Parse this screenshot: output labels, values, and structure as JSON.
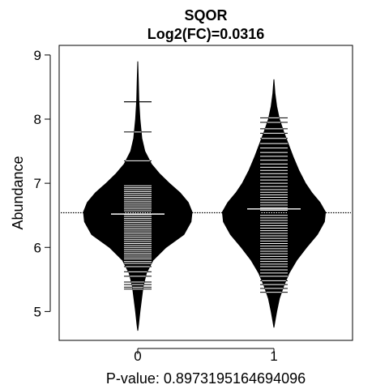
{
  "chart_data": {
    "type": "beanplot",
    "title": "SQOR",
    "subtitle": "Log2(FC)=0.0316",
    "xlabel": "P-value: 0.8973195164694096",
    "ylabel": "Abundance",
    "categories": [
      "0",
      "1"
    ],
    "ylim": [
      4.55,
      9.15
    ],
    "yticks": [
      5,
      6,
      7,
      8,
      9
    ],
    "overall_mean": 6.54,
    "grid": false,
    "series": [
      {
        "group": "0",
        "mean": 6.52,
        "density": [
          [
            4.7,
            0.0
          ],
          [
            4.8,
            0.015
          ],
          [
            5.0,
            0.04
          ],
          [
            5.2,
            0.07
          ],
          [
            5.4,
            0.1
          ],
          [
            5.6,
            0.16
          ],
          [
            5.8,
            0.28
          ],
          [
            6.0,
            0.52
          ],
          [
            6.2,
            0.85
          ],
          [
            6.4,
            0.98
          ],
          [
            6.55,
            1.0
          ],
          [
            6.7,
            0.93
          ],
          [
            6.85,
            0.78
          ],
          [
            7.0,
            0.58
          ],
          [
            7.15,
            0.4
          ],
          [
            7.3,
            0.25
          ],
          [
            7.5,
            0.13
          ],
          [
            7.7,
            0.075
          ],
          [
            8.0,
            0.04
          ],
          [
            8.3,
            0.02
          ],
          [
            8.6,
            0.01
          ],
          [
            8.9,
            0.0
          ]
        ],
        "observations": [
          5.35,
          5.38,
          5.42,
          5.46,
          5.55,
          5.62,
          5.7,
          5.75,
          5.78,
          5.82,
          5.85,
          5.88,
          5.91,
          5.94,
          5.97,
          6.0,
          6.03,
          6.06,
          6.09,
          6.12,
          6.15,
          6.18,
          6.21,
          6.24,
          6.27,
          6.3,
          6.33,
          6.36,
          6.39,
          6.42,
          6.45,
          6.48,
          6.51,
          6.54,
          6.57,
          6.6,
          6.63,
          6.66,
          6.69,
          6.72,
          6.75,
          6.78,
          6.81,
          6.84,
          6.87,
          6.9,
          6.93,
          6.96,
          7.35,
          7.8,
          8.27
        ]
      },
      {
        "group": "1",
        "mean": 6.6,
        "density": [
          [
            4.75,
            0.0
          ],
          [
            4.85,
            0.02
          ],
          [
            5.0,
            0.05
          ],
          [
            5.2,
            0.1
          ],
          [
            5.4,
            0.18
          ],
          [
            5.6,
            0.28
          ],
          [
            5.8,
            0.42
          ],
          [
            6.0,
            0.6
          ],
          [
            6.2,
            0.8
          ],
          [
            6.4,
            0.93
          ],
          [
            6.55,
            0.95
          ],
          [
            6.7,
            0.85
          ],
          [
            6.85,
            0.7
          ],
          [
            7.0,
            0.58
          ],
          [
            7.2,
            0.46
          ],
          [
            7.4,
            0.36
          ],
          [
            7.6,
            0.27
          ],
          [
            7.8,
            0.18
          ],
          [
            8.0,
            0.1
          ],
          [
            8.2,
            0.05
          ],
          [
            8.4,
            0.02
          ],
          [
            8.62,
            0.0
          ]
        ],
        "observations": [
          5.3,
          5.36,
          5.42,
          5.48,
          5.55,
          5.6,
          5.65,
          5.7,
          5.74,
          5.78,
          5.82,
          5.86,
          5.9,
          5.94,
          5.98,
          6.02,
          6.06,
          6.1,
          6.14,
          6.18,
          6.22,
          6.26,
          6.3,
          6.34,
          6.38,
          6.42,
          6.46,
          6.5,
          6.54,
          6.58,
          6.62,
          6.66,
          6.7,
          6.74,
          6.78,
          6.82,
          6.86,
          6.9,
          6.95,
          7.0,
          7.05,
          7.1,
          7.15,
          7.2,
          7.25,
          7.3,
          7.36,
          7.42,
          7.48,
          7.55,
          7.62,
          7.7,
          7.78,
          7.85,
          7.95,
          8.02
        ]
      }
    ]
  }
}
